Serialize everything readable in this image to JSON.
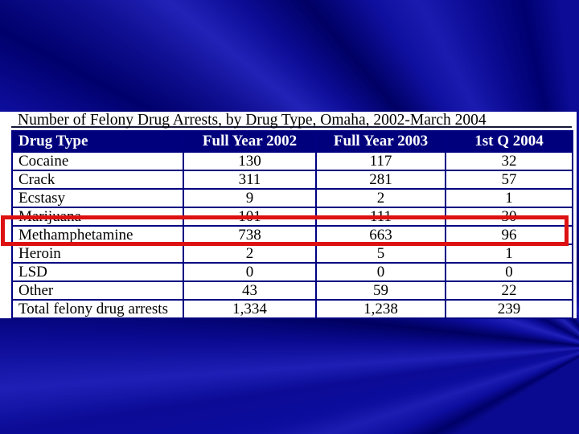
{
  "slide": {
    "title": "Number of Felony Drug Arrests, by Drug Type, Omaha, 2002-March 2004"
  },
  "table": {
    "headers": [
      "Drug Type",
      "Full Year 2002",
      "Full Year 2003",
      "1st Q 2004"
    ],
    "rows": [
      {
        "drug": "Cocaine",
        "y2002": "130",
        "y2003": "117",
        "q2004": "32"
      },
      {
        "drug": "Crack",
        "y2002": "311",
        "y2003": "281",
        "q2004": "57"
      },
      {
        "drug": "Ecstasy",
        "y2002": "9",
        "y2003": "2",
        "q2004": "1"
      },
      {
        "drug": "Marijuana",
        "y2002": "101",
        "y2003": "111",
        "q2004": "30"
      },
      {
        "drug": "Methamphetamine",
        "y2002": "738",
        "y2003": "663",
        "q2004": "96"
      },
      {
        "drug": "Heroin",
        "y2002": "2",
        "y2003": "5",
        "q2004": "1"
      },
      {
        "drug": "LSD",
        "y2002": "0",
        "y2003": "0",
        "q2004": "0"
      },
      {
        "drug": "Other",
        "y2002": "43",
        "y2003": "59",
        "q2004": "22"
      },
      {
        "drug": "Total felony drug arrests",
        "y2002": "1,334",
        "y2003": "1,238",
        "q2004": "239"
      }
    ],
    "highlighted_row": "Methamphetamine"
  },
  "colors": {
    "slide_bg_base": "#0c0c96",
    "ray_dark": "#000064",
    "ray_light": "#2121bb",
    "panel_bg": "#ffffff",
    "header_bg": "#00007d",
    "header_text": "#ffffff",
    "table_border": "#000080",
    "body_text": "#000000",
    "highlight_red": "#dd1111"
  }
}
